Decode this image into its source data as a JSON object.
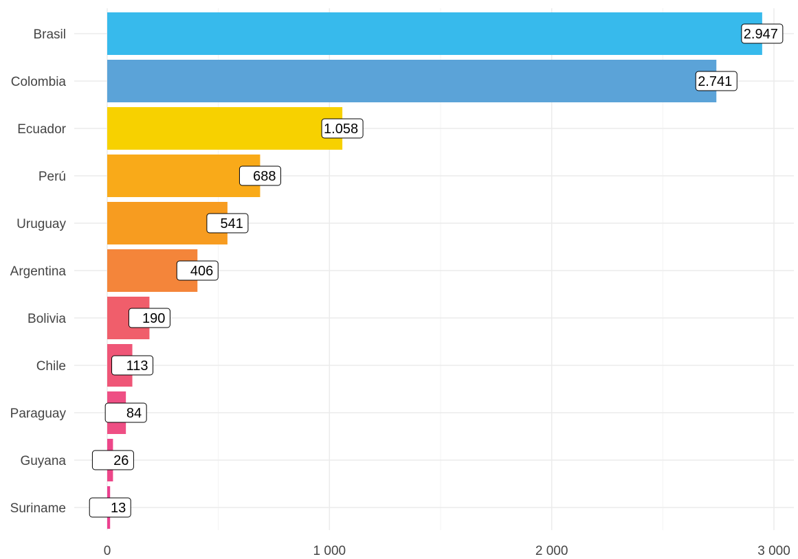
{
  "chart_data": {
    "type": "bar",
    "orientation": "horizontal",
    "title": "",
    "xlabel": "",
    "ylabel": "",
    "xlim": [
      0,
      3000
    ],
    "grid": true,
    "legend": "none",
    "x_ticks": [
      0,
      1000,
      2000,
      3000
    ],
    "x_tick_labels": [
      "0",
      "1 000",
      "2 000",
      "3 000"
    ],
    "categories": [
      "Brasil",
      "Colombia",
      "Ecuador",
      "Perú",
      "Uruguay",
      "Argentina",
      "Bolivia",
      "Chile",
      "Paraguay",
      "Guyana",
      "Suriname"
    ],
    "values": [
      2947,
      2741,
      1058,
      688,
      541,
      406,
      190,
      113,
      84,
      26,
      13
    ],
    "value_labels": [
      "2.947",
      "2.741",
      "1.058",
      "688",
      "541",
      "406",
      "190",
      "113",
      "84",
      "26",
      "13"
    ],
    "colors": [
      "#37baec",
      "#5ba3d8",
      "#f7d100",
      "#f9aa19",
      "#f79c20",
      "#f4853a",
      "#f05e6b",
      "#ef5677",
      "#ee4f84",
      "#ed4689",
      "#ec408f"
    ]
  }
}
